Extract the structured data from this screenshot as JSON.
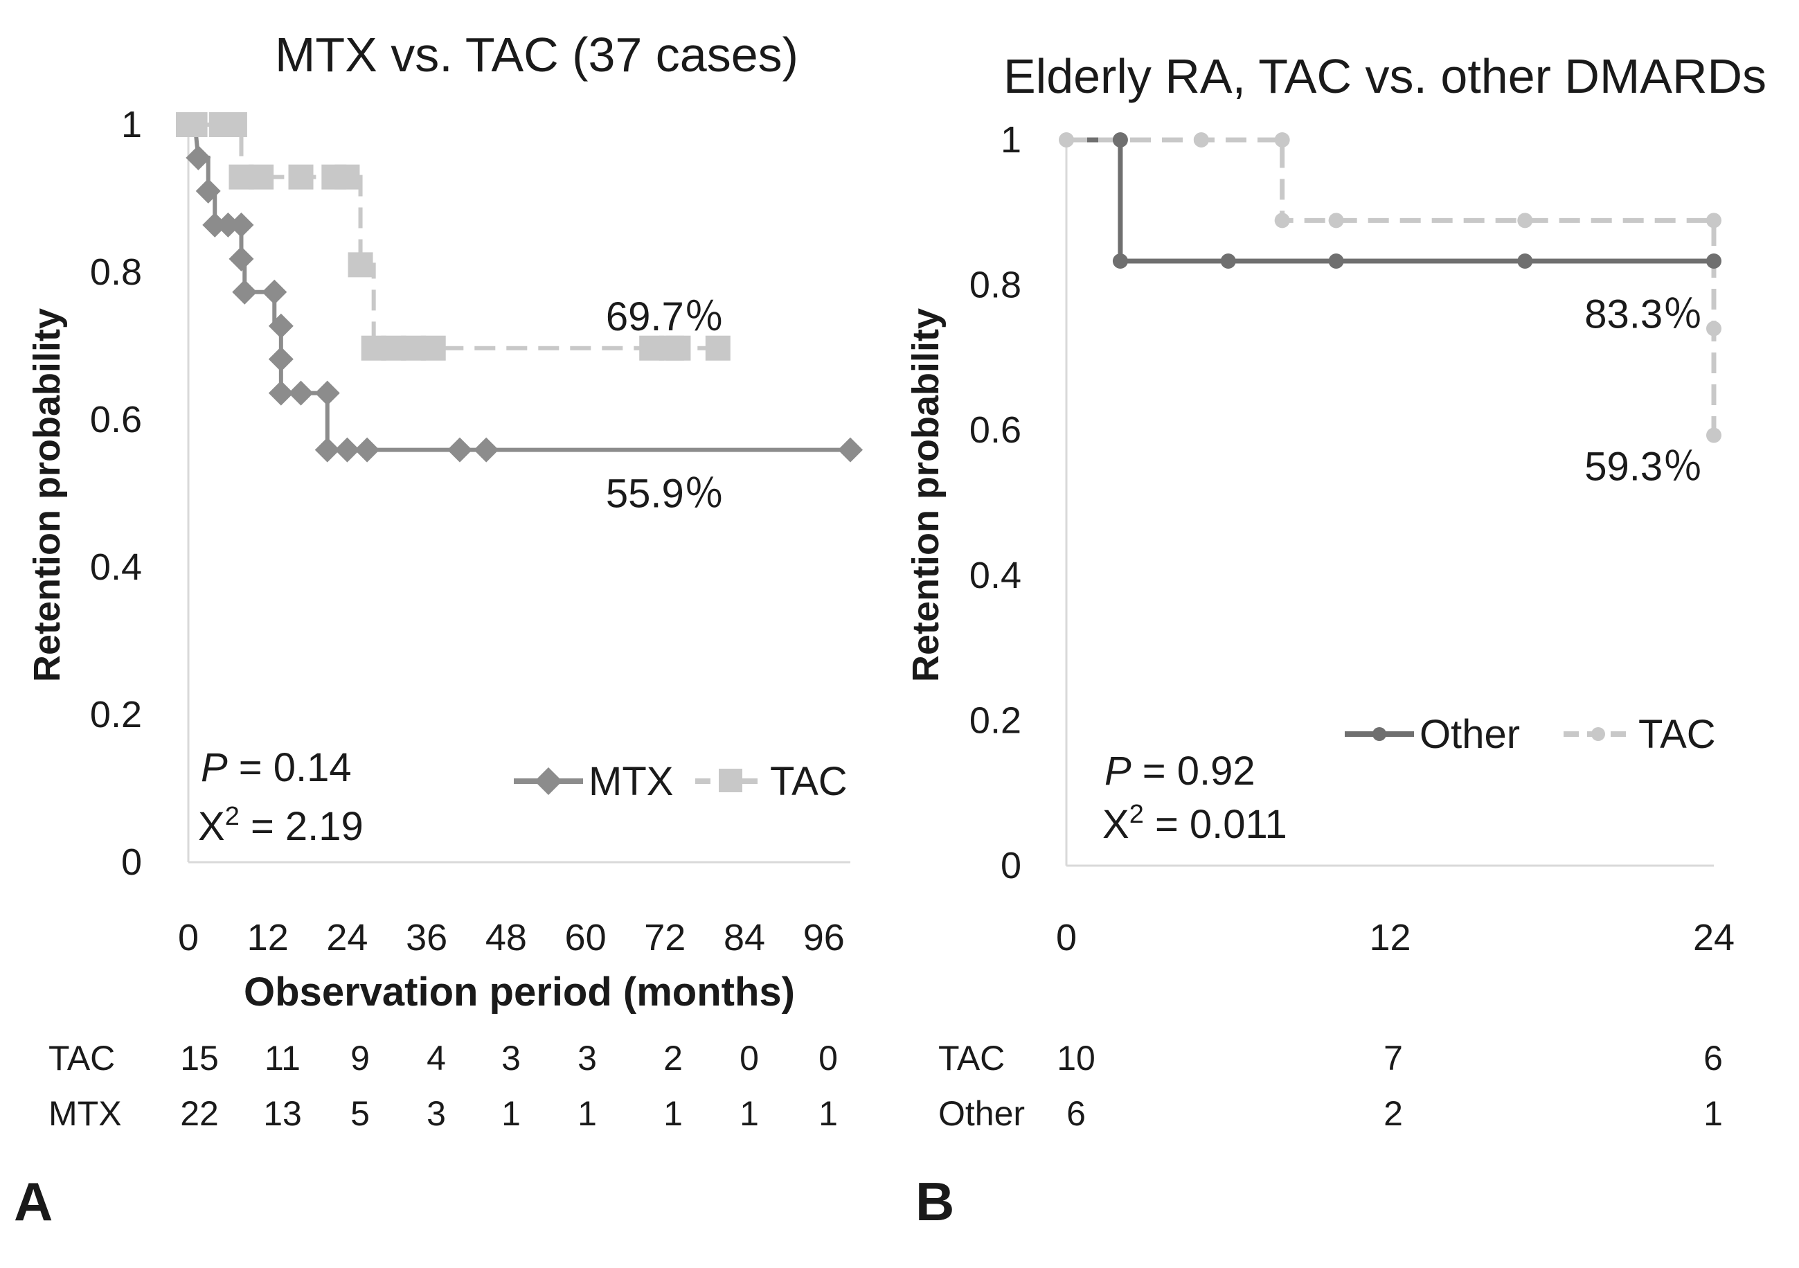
{
  "chart_data": [
    {
      "type": "line",
      "panel_label": "A",
      "title": "MTX vs. TAC (37 cases)",
      "xlabel": "Observation period (months)",
      "ylabel": "Retention probability",
      "xlim": [
        0,
        96
      ],
      "ylim": [
        0,
        1
      ],
      "x_ticks": [
        "0",
        "12",
        "24",
        "36",
        "48",
        "60",
        "72",
        "84",
        "96"
      ],
      "y_ticks": [
        "0",
        "0.2",
        "0.4",
        "0.6",
        "0.8",
        "1"
      ],
      "series": [
        {
          "name": "MTX",
          "color": "#8c8c8c",
          "style": "solid",
          "marker": "diamond",
          "points": [
            [
              0,
              1
            ],
            [
              1,
              1
            ],
            [
              1.5,
              0.955
            ],
            [
              3,
              0.955
            ],
            [
              3,
              0.91
            ],
            [
              4,
              0.91
            ],
            [
              4,
              0.864
            ],
            [
              6,
              0.864
            ],
            [
              8,
              0.864
            ],
            [
              8,
              0.818
            ],
            [
              8.5,
              0.818
            ],
            [
              8.5,
              0.773
            ],
            [
              13,
              0.773
            ],
            [
              13,
              0.727
            ],
            [
              14,
              0.727
            ],
            [
              14,
              0.682
            ],
            [
              14,
              0.636
            ],
            [
              17,
              0.636
            ],
            [
              20,
              0.636
            ],
            [
              21,
              0.636
            ],
            [
              21,
              0.559
            ],
            [
              24,
              0.559
            ],
            [
              27,
              0.559
            ],
            [
              41,
              0.559
            ],
            [
              45,
              0.559
            ],
            [
              100,
              0.559
            ]
          ],
          "markers": [
            [
              0,
              1
            ],
            [
              1.5,
              0.955
            ],
            [
              3,
              0.91
            ],
            [
              4,
              0.864
            ],
            [
              6,
              0.864
            ],
            [
              8,
              0.864
            ],
            [
              8,
              0.818
            ],
            [
              8.5,
              0.773
            ],
            [
              13,
              0.773
            ],
            [
              14,
              0.727
            ],
            [
              14,
              0.682
            ],
            [
              14,
              0.636
            ],
            [
              17,
              0.636
            ],
            [
              21,
              0.636
            ],
            [
              21,
              0.559
            ],
            [
              24,
              0.559
            ],
            [
              27,
              0.559
            ],
            [
              41,
              0.559
            ],
            [
              45,
              0.559
            ],
            [
              100,
              0.559
            ]
          ]
        },
        {
          "name": "TAC",
          "color": "#c8c8c8",
          "style": "dashed",
          "marker": "square",
          "points": [
            [
              0,
              1
            ],
            [
              5,
              1
            ],
            [
              8,
              1
            ],
            [
              8,
              0.929
            ],
            [
              12,
              0.929
            ],
            [
              17,
              0.929
            ],
            [
              22,
              0.929
            ],
            [
              26,
              0.929
            ],
            [
              26,
              0.81
            ],
            [
              28,
              0.81
            ],
            [
              28,
              0.697
            ],
            [
              30,
              0.697
            ],
            [
              34,
              0.697
            ],
            [
              38,
              0.697
            ],
            [
              70,
              0.697
            ],
            [
              74,
              0.697
            ],
            [
              80,
              0.697
            ]
          ],
          "markers": [
            [
              0,
              1
            ],
            [
              1,
              1
            ],
            [
              5,
              1
            ],
            [
              7,
              1
            ],
            [
              8,
              0.929
            ],
            [
              11,
              0.929
            ],
            [
              17,
              0.929
            ],
            [
              22,
              0.929
            ],
            [
              24,
              0.929
            ],
            [
              26,
              0.81
            ],
            [
              28,
              0.697
            ],
            [
              31,
              0.697
            ],
            [
              34,
              0.697
            ],
            [
              37,
              0.697
            ],
            [
              70,
              0.697
            ],
            [
              73,
              0.697
            ],
            [
              74,
              0.697
            ],
            [
              80,
              0.697
            ]
          ]
        }
      ],
      "end_labels": [
        {
          "text": "69.7％",
          "series": "TAC",
          "x": 72,
          "y": 0.74
        },
        {
          "text": "55.9％",
          "series": "MTX",
          "x": 72,
          "y": 0.5
        }
      ],
      "stats": {
        "p_label": "P",
        "p_value": " = 0.14",
        "chi_label": "X",
        "chi_sup": "2",
        "chi_value": " = 2.19"
      },
      "legend": {
        "position": "bottom-right",
        "entries": [
          "MTX",
          "TAC"
        ]
      },
      "risk_table": {
        "times": [
          0,
          12,
          24,
          36,
          48,
          60,
          72,
          84,
          96
        ],
        "rows": [
          {
            "label": "TAC",
            "values": [
              "15",
              "11",
              "9",
              "4",
              "3",
              "3",
              "2",
              "0",
              "0"
            ]
          },
          {
            "label": "MTX",
            "values": [
              "22",
              "13",
              "5",
              "3",
              "1",
              "1",
              "1",
              "1",
              "1"
            ]
          }
        ]
      }
    },
    {
      "type": "line",
      "panel_label": "B",
      "title": "Elderly RA, TAC vs. other DMARDs",
      "xlabel": "",
      "ylabel": "Retention probability",
      "xlim": [
        0,
        24
      ],
      "ylim": [
        0,
        1
      ],
      "x_ticks": [
        "0",
        "12",
        "24"
      ],
      "y_ticks": [
        "0",
        "0.2",
        "0.4",
        "0.6",
        "0.8",
        "1"
      ],
      "series": [
        {
          "name": "Other",
          "color": "#6f6f6f",
          "style": "solid",
          "marker": "dot",
          "points": [
            [
              0,
              1
            ],
            [
              2,
              1
            ],
            [
              2,
              0.833
            ],
            [
              6,
              0.833
            ],
            [
              10,
              0.833
            ],
            [
              17,
              0.833
            ],
            [
              24,
              0.833
            ]
          ],
          "markers": [
            [
              2,
              1
            ],
            [
              2,
              0.833
            ],
            [
              6,
              0.833
            ],
            [
              10,
              0.833
            ],
            [
              17,
              0.833
            ],
            [
              24,
              0.833
            ]
          ]
        },
        {
          "name": "TAC",
          "color": "#c8c8c8",
          "style": "dashed",
          "marker": "dot",
          "points": [
            [
              0,
              1
            ],
            [
              5,
              1
            ],
            [
              8,
              1
            ],
            [
              8,
              0.889
            ],
            [
              10,
              0.889
            ],
            [
              17,
              0.889
            ],
            [
              24,
              0.889
            ],
            [
              24,
              0.74
            ],
            [
              24,
              0.593
            ]
          ],
          "markers": [
            [
              0,
              1
            ],
            [
              5,
              1
            ],
            [
              8,
              1
            ],
            [
              8,
              0.889
            ],
            [
              10,
              0.889
            ],
            [
              17,
              0.889
            ],
            [
              24,
              0.889
            ],
            [
              24,
              0.74
            ],
            [
              24,
              0.593
            ]
          ]
        }
      ],
      "end_labels": [
        {
          "text": "83.3％",
          "series": "Other",
          "x": 21.4,
          "y": 0.76
        },
        {
          "text": "59.3％",
          "series": "TAC",
          "x": 21.4,
          "y": 0.55
        }
      ],
      "stats": {
        "p_label": "P",
        "p_value": " = 0.92",
        "chi_label": "X",
        "chi_sup": "2",
        "chi_value": " = 0.011"
      },
      "legend": {
        "position": "bottom-right",
        "entries": [
          "Other",
          "TAC"
        ]
      },
      "risk_table": {
        "times": [
          0,
          12,
          24
        ],
        "rows": [
          {
            "label": "TAC",
            "values": [
              "10",
              "7",
              "6"
            ]
          },
          {
            "label": "Other",
            "values": [
              "6",
              "2",
              "1"
            ]
          }
        ]
      }
    }
  ]
}
